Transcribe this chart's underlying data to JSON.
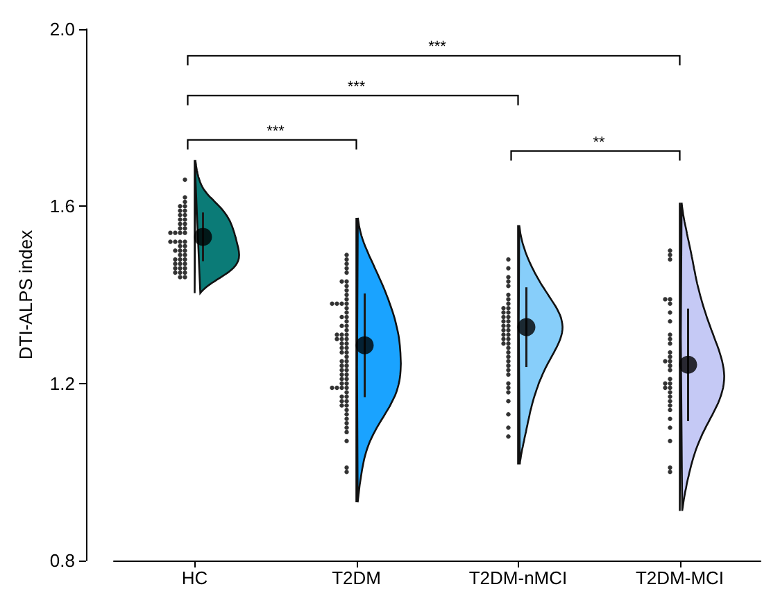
{
  "chart_data": {
    "type": "scatter",
    "ylabel": "DTI-ALPS index",
    "categories": [
      "HC",
      "T2DM",
      "T2DM-nMCI",
      "T2DM-MCI"
    ],
    "ylim": [
      0.8,
      2.0
    ],
    "yticks": [
      {
        "value": 0.8,
        "label": "0.8"
      },
      {
        "value": 1.2,
        "label": "1.2"
      },
      {
        "value": 1.6,
        "label": "1.6"
      },
      {
        "value": 2.0,
        "label": "2.0"
      }
    ],
    "grid": false,
    "annotations": [
      "***",
      "***",
      "***",
      "**"
    ],
    "series": [
      {
        "color": "#000000",
        "marker": "circle",
        "x": [
          "HC",
          "HC",
          "HC",
          "HC",
          "HC",
          "HC",
          "HC",
          "HC",
          "HC",
          "HC",
          "HC",
          "HC",
          "HC",
          "HC",
          "HC",
          "HC",
          "HC",
          "HC",
          "HC",
          "HC",
          "HC",
          "HC",
          "HC",
          "HC",
          "HC",
          "HC",
          "HC",
          "HC",
          "HC",
          "HC",
          "HC",
          "HC",
          "HC",
          "HC",
          "HC",
          "HC",
          "HC",
          "HC",
          "HC",
          "HC",
          "HC",
          "HC",
          "HC",
          "HC"
        ],
        "values": [
          1.66,
          1.62,
          1.61,
          1.6,
          1.6,
          1.59,
          1.59,
          1.58,
          1.58,
          1.57,
          1.57,
          1.56,
          1.56,
          1.55,
          1.55,
          1.54,
          1.54,
          1.54,
          1.54,
          1.52,
          1.52,
          1.52,
          1.52,
          1.51,
          1.51,
          1.5,
          1.5,
          1.5,
          1.49,
          1.49,
          1.48,
          1.48,
          1.48,
          1.47,
          1.47,
          1.47,
          1.46,
          1.46,
          1.46,
          1.45,
          1.45,
          1.45,
          1.44,
          1.44
        ]
      },
      {
        "color": "#000000",
        "marker": "circle",
        "x": [
          "T2DM",
          "T2DM",
          "T2DM",
          "T2DM",
          "T2DM",
          "T2DM",
          "T2DM",
          "T2DM",
          "T2DM",
          "T2DM",
          "T2DM",
          "T2DM",
          "T2DM",
          "T2DM",
          "T2DM",
          "T2DM",
          "T2DM",
          "T2DM",
          "T2DM",
          "T2DM",
          "T2DM",
          "T2DM",
          "T2DM",
          "T2DM",
          "T2DM",
          "T2DM",
          "T2DM",
          "T2DM",
          "T2DM",
          "T2DM",
          "T2DM",
          "T2DM",
          "T2DM",
          "T2DM",
          "T2DM",
          "T2DM",
          "T2DM",
          "T2DM",
          "T2DM",
          "T2DM",
          "T2DM",
          "T2DM",
          "T2DM",
          "T2DM",
          "T2DM",
          "T2DM",
          "T2DM",
          "T2DM",
          "T2DM",
          "T2DM",
          "T2DM",
          "T2DM",
          "T2DM",
          "T2DM",
          "T2DM",
          "T2DM",
          "T2DM",
          "T2DM",
          "T2DM",
          "T2DM",
          "T2DM",
          "T2DM",
          "T2DM",
          "T2DM",
          "T2DM",
          "T2DM",
          "T2DM",
          "T2DM"
        ],
        "values": [
          1.49,
          1.48,
          1.47,
          1.46,
          1.45,
          1.43,
          1.42,
          1.41,
          1.39,
          1.38,
          1.38,
          1.38,
          1.38,
          1.37,
          1.36,
          1.35,
          1.34,
          1.33,
          1.32,
          1.31,
          1.31,
          1.3,
          1.3,
          1.3,
          1.29,
          1.28,
          1.28,
          1.27,
          1.26,
          1.25,
          1.25,
          1.24,
          1.23,
          1.23,
          1.22,
          1.21,
          1.21,
          1.2,
          1.2,
          1.19,
          1.19,
          1.19,
          1.19,
          1.18,
          1.17,
          1.16,
          1.15,
          1.14,
          1.13,
          1.12,
          1.11,
          1.1,
          1.09,
          1.07,
          1.01,
          1.0,
          1.4,
          1.35,
          1.33,
          1.29,
          1.27,
          1.24,
          1.22,
          1.17,
          1.16,
          1.15,
          1.43,
          1.31
        ]
      },
      {
        "color": "#000000",
        "marker": "circle",
        "x": [
          "T2DM-nMCI",
          "T2DM-nMCI",
          "T2DM-nMCI",
          "T2DM-nMCI",
          "T2DM-nMCI",
          "T2DM-nMCI",
          "T2DM-nMCI",
          "T2DM-nMCI",
          "T2DM-nMCI",
          "T2DM-nMCI",
          "T2DM-nMCI",
          "T2DM-nMCI",
          "T2DM-nMCI",
          "T2DM-nMCI",
          "T2DM-nMCI",
          "T2DM-nMCI",
          "T2DM-nMCI",
          "T2DM-nMCI",
          "T2DM-nMCI",
          "T2DM-nMCI",
          "T2DM-nMCI",
          "T2DM-nMCI",
          "T2DM-nMCI",
          "T2DM-nMCI",
          "T2DM-nMCI",
          "T2DM-nMCI",
          "T2DM-nMCI",
          "T2DM-nMCI",
          "T2DM-nMCI",
          "T2DM-nMCI",
          "T2DM-nMCI",
          "T2DM-nMCI",
          "T2DM-nMCI",
          "T2DM-nMCI",
          "T2DM-nMCI",
          "T2DM-nMCI",
          "T2DM-nMCI",
          "T2DM-nMCI",
          "T2DM-nMCI",
          "T2DM-nMCI"
        ],
        "values": [
          1.48,
          1.46,
          1.44,
          1.43,
          1.42,
          1.4,
          1.39,
          1.38,
          1.37,
          1.37,
          1.36,
          1.36,
          1.35,
          1.35,
          1.34,
          1.34,
          1.33,
          1.33,
          1.32,
          1.32,
          1.31,
          1.31,
          1.3,
          1.3,
          1.29,
          1.29,
          1.28,
          1.27,
          1.26,
          1.25,
          1.24,
          1.23,
          1.22,
          1.2,
          1.19,
          1.18,
          1.16,
          1.13,
          1.1,
          1.08
        ]
      },
      {
        "color": "#000000",
        "marker": "circle",
        "x": [
          "T2DM-MCI",
          "T2DM-MCI",
          "T2DM-MCI",
          "T2DM-MCI",
          "T2DM-MCI",
          "T2DM-MCI",
          "T2DM-MCI",
          "T2DM-MCI",
          "T2DM-MCI",
          "T2DM-MCI",
          "T2DM-MCI",
          "T2DM-MCI",
          "T2DM-MCI",
          "T2DM-MCI",
          "T2DM-MCI",
          "T2DM-MCI",
          "T2DM-MCI",
          "T2DM-MCI",
          "T2DM-MCI",
          "T2DM-MCI",
          "T2DM-MCI",
          "T2DM-MCI",
          "T2DM-MCI",
          "T2DM-MCI",
          "T2DM-MCI",
          "T2DM-MCI",
          "T2DM-MCI",
          "T2DM-MCI",
          "T2DM-MCI",
          "T2DM-MCI",
          "T2DM-MCI",
          "T2DM-MCI"
        ],
        "values": [
          1.5,
          1.49,
          1.48,
          1.39,
          1.39,
          1.38,
          1.36,
          1.34,
          1.31,
          1.3,
          1.29,
          1.27,
          1.26,
          1.25,
          1.25,
          1.24,
          1.23,
          1.21,
          1.2,
          1.2,
          1.19,
          1.19,
          1.18,
          1.17,
          1.16,
          1.15,
          1.14,
          1.12,
          1.1,
          1.07,
          1.01,
          1.0
        ]
      },
      {
        "color": "#000000",
        "marker": "circle",
        "values": [
          1.531,
          1.286,
          1.327,
          1.242
        ],
        "errors": [
          0.055,
          0.117,
          0.09,
          0.127
        ]
      }
    ]
  }
}
